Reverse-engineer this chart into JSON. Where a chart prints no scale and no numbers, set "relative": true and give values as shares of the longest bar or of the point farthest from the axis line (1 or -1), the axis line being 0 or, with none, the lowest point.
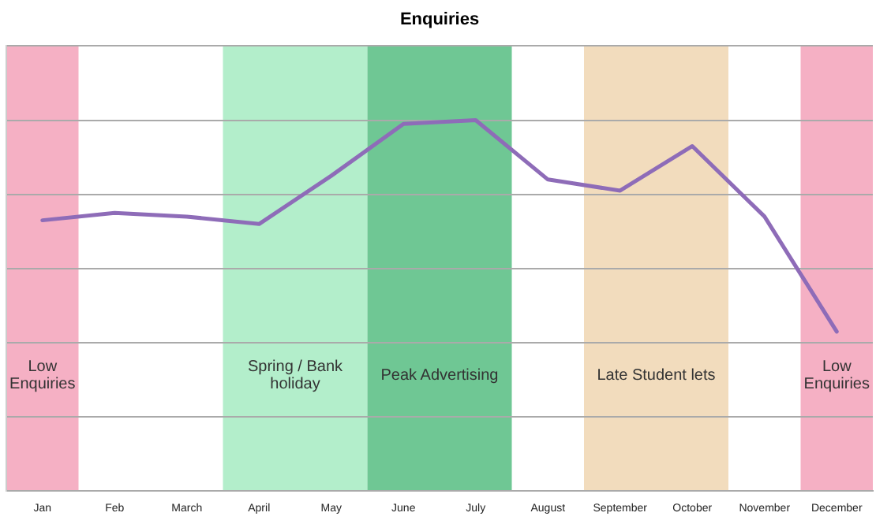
{
  "chart_data": {
    "type": "line",
    "title": "Enquiries",
    "categories": [
      "Jan",
      "Feb",
      "March",
      "April",
      "May",
      "June",
      "July",
      "August",
      "September",
      "October",
      "November",
      "December"
    ],
    "series": [
      {
        "color": "#8e6cb8",
        "values": [
          0.73,
          0.75,
          0.74,
          0.72,
          0.85,
          0.99,
          1,
          0.84,
          0.81,
          0.93,
          0.74,
          0.43
        ]
      }
    ],
    "relative": true,
    "grid": "y",
    "legend": false,
    "marker": "none",
    "line_style": "solid",
    "bands": [
      {
        "axis": "x",
        "from": "Jan",
        "to": "Jan",
        "label": "Low Enquiries",
        "color": "#f5b0c4"
      },
      {
        "axis": "x",
        "from": "April",
        "to": "May",
        "label": "Spring / Bank holiday",
        "color": "#b3eecb"
      },
      {
        "axis": "x",
        "from": "June",
        "to": "July",
        "label": "Peak Advertising",
        "color": "#6fc794"
      },
      {
        "axis": "x",
        "from": "September",
        "to": "October",
        "label": "Late Student lets",
        "color": "#f2dcbd"
      },
      {
        "axis": "x",
        "from": "December",
        "to": "December",
        "label": "Low Enquiries",
        "color": "#f5b0c4"
      }
    ]
  }
}
